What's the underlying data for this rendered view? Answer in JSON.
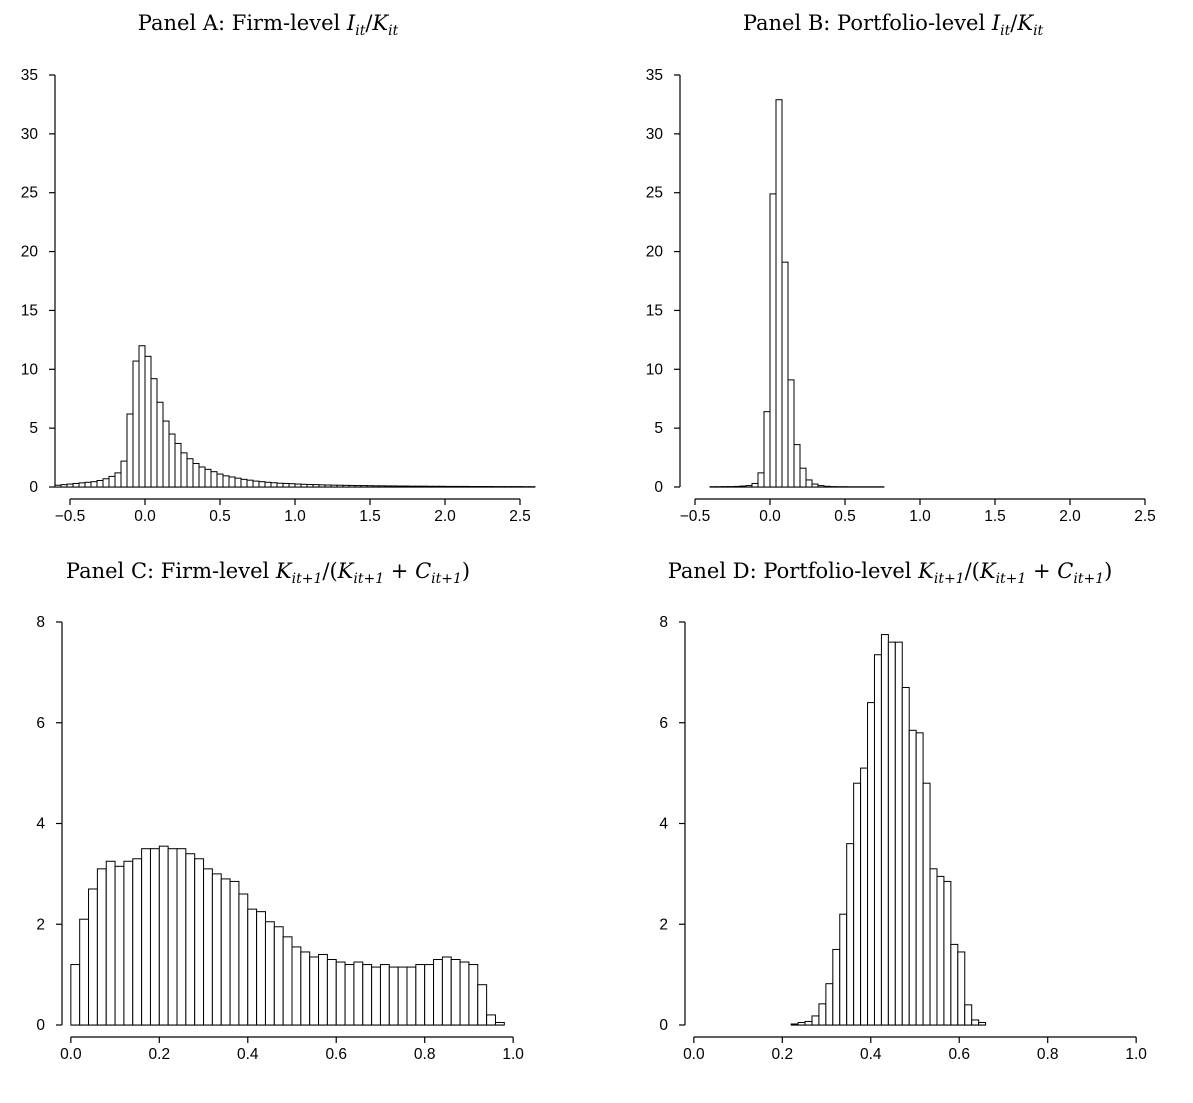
{
  "chart_data": [
    {
      "id": "A",
      "type": "bar",
      "title_parts": [
        {
          "t": "Panel A: Firm-level "
        },
        {
          "t": "I",
          "i": true
        },
        {
          "t": "it",
          "sub": true,
          "i": true
        },
        {
          "t": "/"
        },
        {
          "t": "K",
          "i": true
        },
        {
          "t": "it",
          "sub": true,
          "i": true
        }
      ],
      "xlim": [
        -0.6,
        2.6
      ],
      "ylim": [
        0,
        35
      ],
      "xticks": [
        -0.5,
        0.0,
        0.5,
        1.0,
        1.5,
        2.0,
        2.5
      ],
      "xtick_labels": [
        "−0.5",
        "0.0",
        "0.5",
        "1.0",
        "1.5",
        "2.0",
        "2.5"
      ],
      "yticks": [
        0,
        5,
        10,
        15,
        20,
        25,
        30,
        35
      ],
      "ytick_labels": [
        "0",
        "5",
        "10",
        "15",
        "20",
        "25",
        "30",
        "35"
      ],
      "bin_start": -0.6,
      "bin_width": 0.04,
      "values": [
        0.15,
        0.2,
        0.25,
        0.3,
        0.35,
        0.4,
        0.45,
        0.55,
        0.7,
        0.9,
        1.2,
        2.2,
        6.2,
        10.7,
        12.0,
        11.1,
        9.2,
        7.2,
        5.6,
        4.5,
        3.7,
        2.9,
        2.4,
        2.0,
        1.7,
        1.5,
        1.3,
        1.1,
        0.95,
        0.85,
        0.75,
        0.65,
        0.58,
        0.5,
        0.45,
        0.4,
        0.36,
        0.32,
        0.3,
        0.28,
        0.25,
        0.23,
        0.21,
        0.2,
        0.18,
        0.17,
        0.16,
        0.15,
        0.14,
        0.13,
        0.12,
        0.12,
        0.11,
        0.1,
        0.1,
        0.09,
        0.09,
        0.08,
        0.08,
        0.07,
        0.07,
        0.07,
        0.06,
        0.06,
        0.06,
        0.05,
        0.05,
        0.05,
        0.05,
        0.04,
        0.04,
        0.04,
        0.04,
        0.03,
        0.03,
        0.03,
        0.03,
        0.03,
        0.02,
        0.02
      ]
    },
    {
      "id": "B",
      "type": "bar",
      "title_parts": [
        {
          "t": "Panel B: Portfolio-level "
        },
        {
          "t": "I",
          "i": true
        },
        {
          "t": "it",
          "sub": true,
          "i": true
        },
        {
          "t": "/"
        },
        {
          "t": "K",
          "i": true
        },
        {
          "t": "it",
          "sub": true,
          "i": true
        }
      ],
      "xlim": [
        -0.6,
        2.6
      ],
      "ylim": [
        0,
        35
      ],
      "xticks": [
        -0.5,
        0.0,
        0.5,
        1.0,
        1.5,
        2.0,
        2.5
      ],
      "xtick_labels": [
        "−0.5",
        "0.0",
        "0.5",
        "1.0",
        "1.5",
        "2.0",
        "2.5"
      ],
      "yticks": [
        0,
        5,
        10,
        15,
        20,
        25,
        30,
        35
      ],
      "ytick_labels": [
        "0",
        "5",
        "10",
        "15",
        "20",
        "25",
        "30",
        "35"
      ],
      "bin_start": -0.4,
      "bin_width": 0.04,
      "values": [
        0.02,
        0.02,
        0.03,
        0.03,
        0.05,
        0.08,
        0.12,
        0.3,
        1.2,
        6.4,
        24.9,
        32.9,
        19.1,
        9.1,
        3.6,
        1.6,
        0.6,
        0.25,
        0.12,
        0.06,
        0.03,
        0.02,
        0.02,
        0.01,
        0.01,
        0.01,
        0.01,
        0.01,
        0.01
      ]
    },
    {
      "id": "C",
      "type": "bar",
      "title_parts": [
        {
          "t": "Panel C: Firm-level "
        },
        {
          "t": "K",
          "i": true
        },
        {
          "t": "it+1",
          "sub": true,
          "i": true
        },
        {
          "t": "/("
        },
        {
          "t": "K",
          "i": true
        },
        {
          "t": "it+1",
          "sub": true,
          "i": true
        },
        {
          "t": " + "
        },
        {
          "t": "C",
          "i": true
        },
        {
          "t": "it+1",
          "sub": true,
          "i": true
        },
        {
          "t": ")"
        }
      ],
      "xlim": [
        -0.02,
        1.02
      ],
      "ylim": [
        0,
        8
      ],
      "xticks": [
        0.0,
        0.2,
        0.4,
        0.6,
        0.8,
        1.0
      ],
      "xtick_labels": [
        "0.0",
        "0.2",
        "0.4",
        "0.6",
        "0.8",
        "1.0"
      ],
      "yticks": [
        0,
        2,
        4,
        6,
        8
      ],
      "ytick_labels": [
        "0",
        "2",
        "4",
        "6",
        "8"
      ],
      "bin_start": 0.0,
      "bin_width": 0.02,
      "values": [
        1.2,
        2.1,
        2.7,
        3.1,
        3.25,
        3.15,
        3.25,
        3.3,
        3.5,
        3.5,
        3.55,
        3.5,
        3.5,
        3.4,
        3.3,
        3.1,
        3.0,
        2.9,
        2.85,
        2.6,
        2.3,
        2.25,
        2.05,
        1.95,
        1.75,
        1.55,
        1.45,
        1.35,
        1.4,
        1.3,
        1.25,
        1.2,
        1.25,
        1.2,
        1.15,
        1.2,
        1.15,
        1.15,
        1.15,
        1.2,
        1.2,
        1.3,
        1.35,
        1.3,
        1.25,
        1.2,
        0.8,
        0.2,
        0.05
      ]
    },
    {
      "id": "D",
      "type": "bar",
      "title_parts": [
        {
          "t": "Panel D: Portfolio-level "
        },
        {
          "t": "K",
          "i": true
        },
        {
          "t": "it+1",
          "sub": true,
          "i": true
        },
        {
          "t": "/("
        },
        {
          "t": "K",
          "i": true
        },
        {
          "t": "it+1",
          "sub": true,
          "i": true
        },
        {
          "t": " + "
        },
        {
          "t": "C",
          "i": true
        },
        {
          "t": "it+1",
          "sub": true,
          "i": true
        },
        {
          "t": ")"
        }
      ],
      "xlim": [
        -0.02,
        1.02
      ],
      "ylim": [
        0,
        8
      ],
      "xticks": [
        0.0,
        0.2,
        0.4,
        0.6,
        0.8,
        1.0
      ],
      "xtick_labels": [
        "0.0",
        "0.2",
        "0.4",
        "0.6",
        "0.8",
        "1.0"
      ],
      "yticks": [
        0,
        2,
        4,
        6,
        8
      ],
      "ytick_labels": [
        "0",
        "2",
        "4",
        "6",
        "8"
      ],
      "bin_start": 0.22,
      "bin_width": 0.0157,
      "values": [
        0.02,
        0.05,
        0.07,
        0.18,
        0.42,
        0.82,
        1.5,
        2.2,
        3.6,
        4.8,
        5.1,
        6.4,
        7.35,
        7.75,
        7.6,
        7.6,
        6.7,
        5.85,
        5.8,
        4.8,
        3.1,
        2.95,
        2.85,
        1.6,
        1.45,
        0.4,
        0.1,
        0.05
      ]
    }
  ]
}
